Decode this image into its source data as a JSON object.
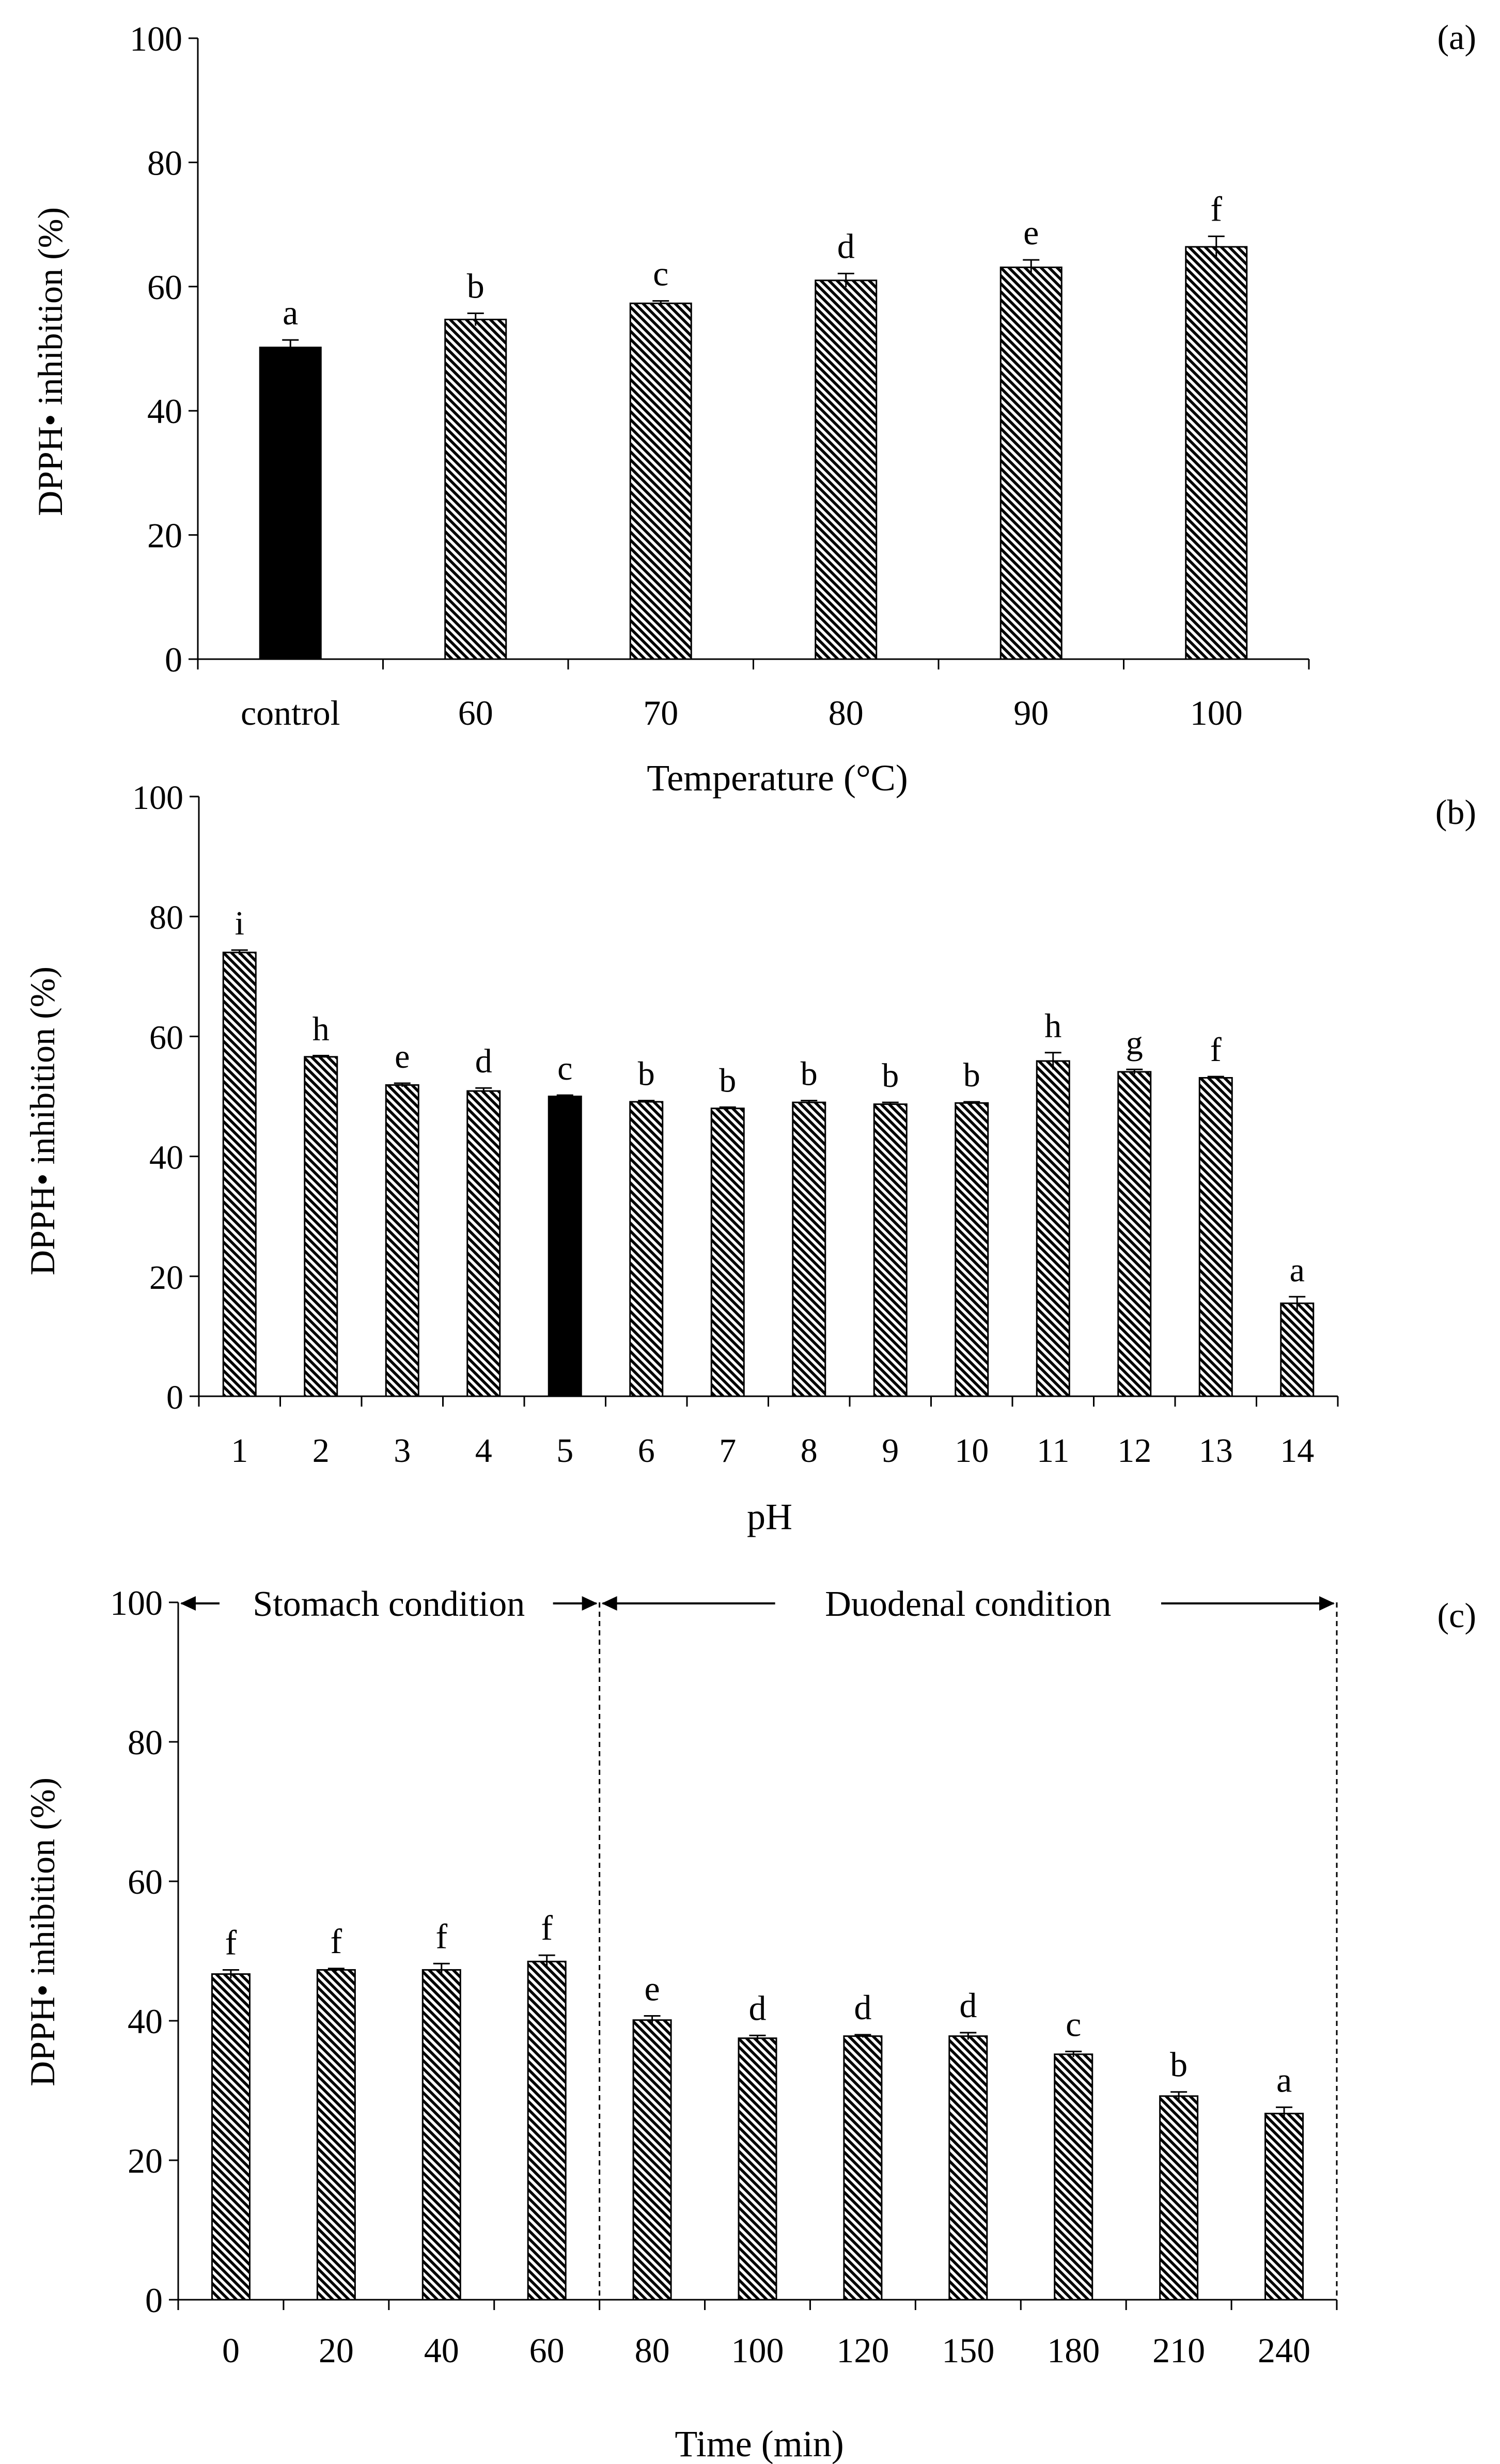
{
  "colors": {
    "solid": "#000000",
    "hatch": "#000000",
    "background": "#ffffff"
  },
  "chart_data": [
    {
      "type": "bar",
      "panel_label": "(a)",
      "xlabel": "Temperature (°C)",
      "ylabel": "DPPH• inhibition (%)",
      "ylim": [
        0,
        100
      ],
      "yticks": [
        "0",
        "20",
        "40",
        "60",
        "80",
        "100"
      ],
      "categories": [
        "control",
        "60",
        "70",
        "80",
        "90",
        "100"
      ],
      "values": [
        50.2,
        54.7,
        57.3,
        61.0,
        63.1,
        66.4
      ],
      "errors": [
        1.2,
        1.0,
        0.4,
        1.1,
        1.2,
        1.7
      ],
      "letters": [
        "a",
        "b",
        "c",
        "d",
        "e",
        "f"
      ],
      "fill": [
        "solid",
        "hatch",
        "hatch",
        "hatch",
        "hatch",
        "hatch"
      ]
    },
    {
      "type": "bar",
      "panel_label": "(b)",
      "xlabel": "pH",
      "ylabel": "DPPH• inhibition (%)",
      "ylim": [
        0,
        100
      ],
      "yticks": [
        "0",
        "20",
        "40",
        "60",
        "80",
        "100"
      ],
      "categories": [
        "1",
        "2",
        "3",
        "4",
        "5",
        "6",
        "7",
        "8",
        "9",
        "10",
        "11",
        "12",
        "13",
        "14"
      ],
      "values": [
        74.0,
        56.6,
        51.9,
        50.9,
        50.0,
        49.1,
        48.0,
        49.0,
        48.7,
        48.9,
        55.9,
        54.1,
        53.1,
        15.5
      ],
      "errors": [
        0.4,
        0.2,
        0.3,
        0.5,
        0.2,
        0.2,
        0.2,
        0.3,
        0.3,
        0.2,
        1.4,
        0.4,
        0.2,
        1.1
      ],
      "letters": [
        "i",
        "h",
        "e",
        "d",
        "c",
        "b",
        "b",
        "b",
        "b",
        "b",
        "h",
        "g",
        "f",
        "a"
      ],
      "fill": [
        "hatch",
        "hatch",
        "hatch",
        "hatch",
        "solid",
        "hatch",
        "hatch",
        "hatch",
        "hatch",
        "hatch",
        "hatch",
        "hatch",
        "hatch",
        "hatch"
      ]
    },
    {
      "type": "bar",
      "panel_label": "(c)",
      "xlabel": "Time (min)",
      "ylabel": "DPPH• inhibition (%)",
      "ylim": [
        0,
        100
      ],
      "yticks": [
        "0",
        "20",
        "40",
        "60",
        "80",
        "100"
      ],
      "categories": [
        "0",
        "20",
        "40",
        "60",
        "80",
        "100",
        "120",
        "150",
        "180",
        "210",
        "240"
      ],
      "values": [
        46.7,
        47.3,
        47.3,
        48.5,
        40.1,
        37.5,
        37.8,
        37.8,
        35.2,
        29.2,
        26.7
      ],
      "errors": [
        0.6,
        0.2,
        0.9,
        0.9,
        0.6,
        0.4,
        0.2,
        0.5,
        0.4,
        0.6,
        0.9
      ],
      "letters": [
        "f",
        "f",
        "f",
        "f",
        "e",
        "d",
        "d",
        "d",
        "c",
        "b",
        "a"
      ],
      "fill": [
        "hatch",
        "hatch",
        "hatch",
        "hatch",
        "hatch",
        "hatch",
        "hatch",
        "hatch",
        "hatch",
        "hatch",
        "hatch"
      ],
      "regions": [
        {
          "label": "Stomach condition",
          "from_index": 0,
          "to_index": 3
        },
        {
          "label": "Duodenal condition",
          "from_index": 4,
          "to_index": 10
        }
      ]
    }
  ]
}
